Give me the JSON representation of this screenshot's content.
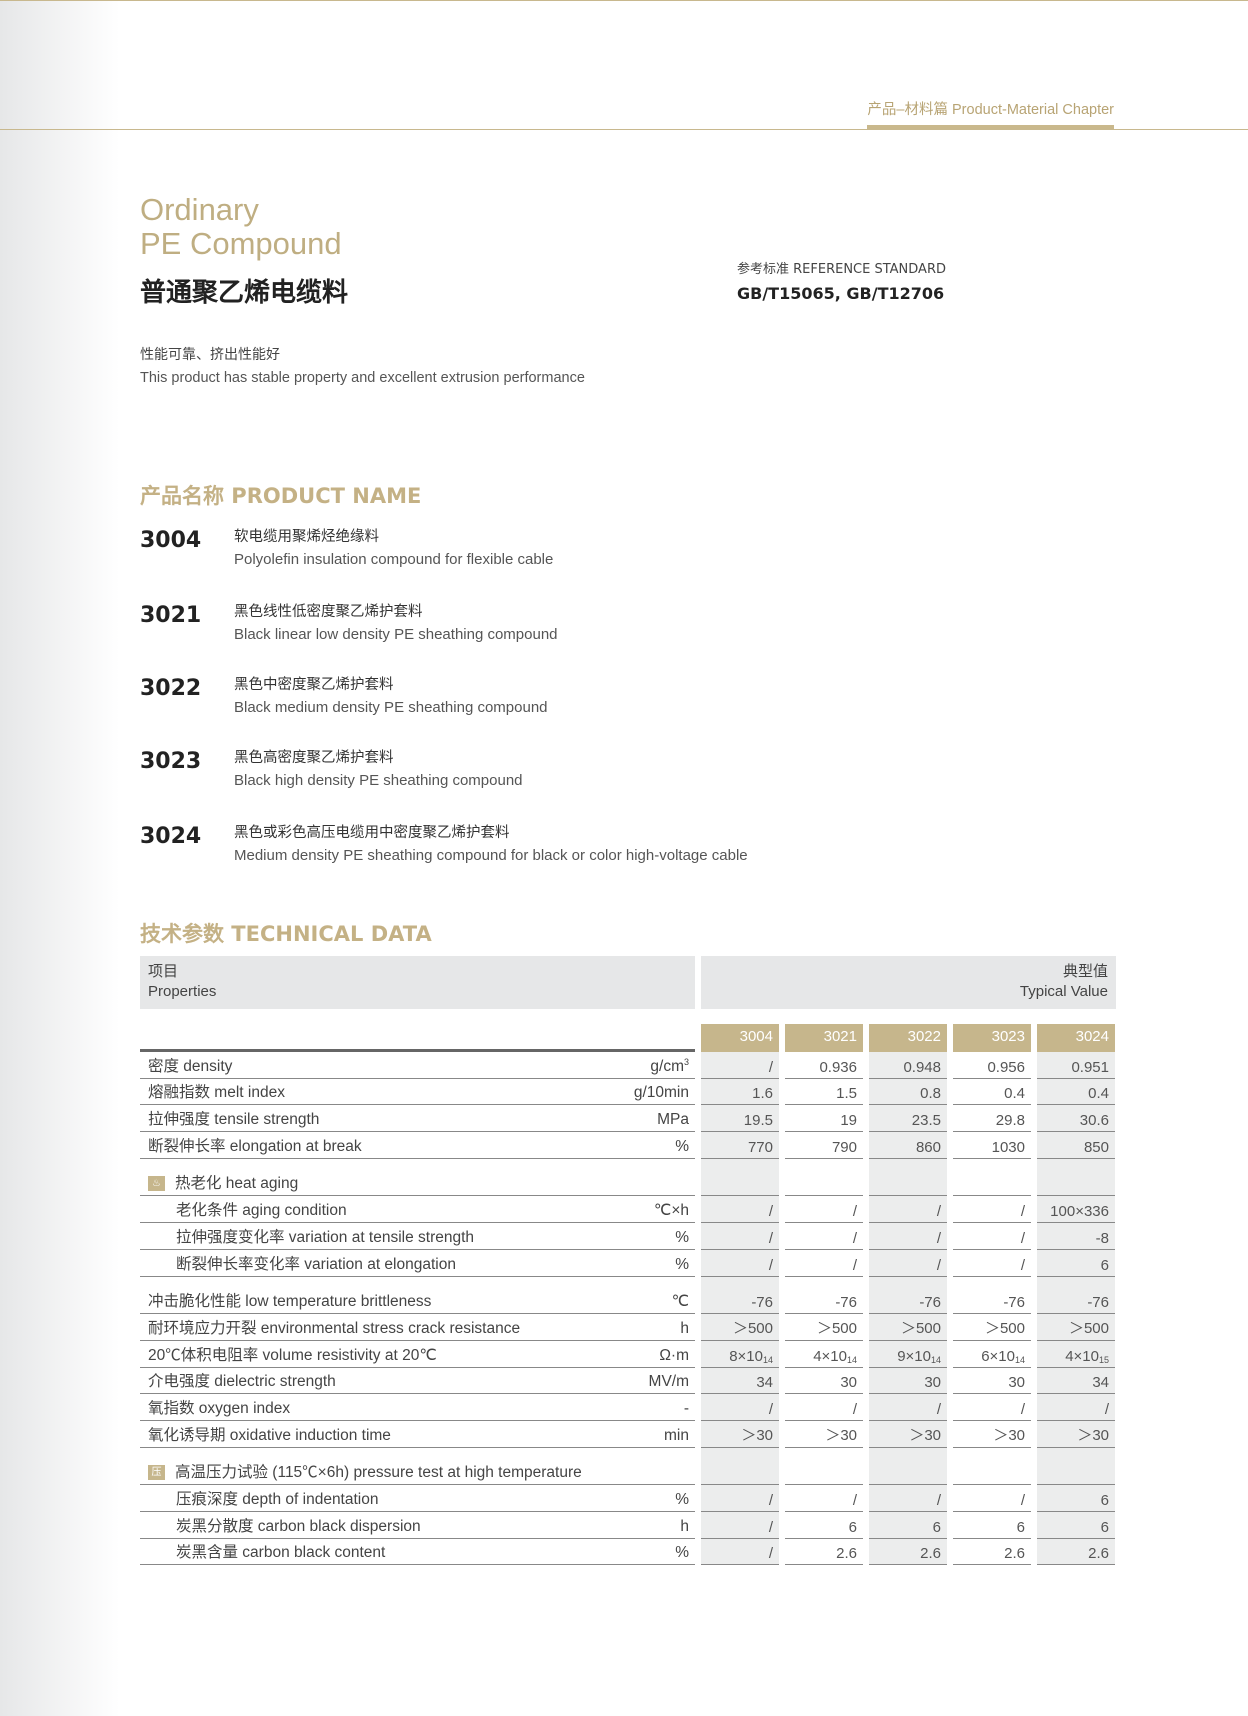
{
  "header": {
    "chapter": "产品–材料篇 Product-Material Chapter"
  },
  "title": {
    "en_line1": "Ordinary",
    "en_line2": "PE Compound",
    "cn": "普通聚乙烯电缆料"
  },
  "reference": {
    "label": "参考标准 REFERENCE STANDARD",
    "value": "GB/T15065, GB/T12706"
  },
  "description": {
    "cn": "性能可靠、挤出性能好",
    "en": "This product has stable property and excellent extrusion performance"
  },
  "product_section": {
    "title": "产品名称 PRODUCT NAME",
    "items": [
      {
        "code": "3004",
        "cn": "软电缆用聚烯烃绝缘料",
        "en": "Polyolefin insulation compound for flexible cable"
      },
      {
        "code": "3021",
        "cn": "黑色线性低密度聚乙烯护套料",
        "en": "Black linear low density PE sheathing compound"
      },
      {
        "code": "3022",
        "cn": "黑色中密度聚乙烯护套料",
        "en": "Black medium density PE sheathing compound"
      },
      {
        "code": "3023",
        "cn": "黑色高密度聚乙烯护套料",
        "en": "Black high density PE sheathing compound"
      },
      {
        "code": "3024",
        "cn": "黑色或彩色高压电缆用中密度聚乙烯护套料",
        "en": "Medium density PE sheathing compound for black or color high-voltage cable"
      }
    ]
  },
  "technical": {
    "title": "技术参数 TECHNICAL DATA",
    "props_cn": "项目",
    "props_en": "Properties",
    "typ_cn": "典型值",
    "typ_en": "Typical Value",
    "columns": [
      "3004",
      "3021",
      "3022",
      "3023",
      "3024"
    ],
    "groups": [
      {
        "rows": [
          {
            "label": "密度 density",
            "unit": "g/cm",
            "unit_sup": "3",
            "values": [
              "/",
              "0.936",
              "0.948",
              "0.956",
              "0.951"
            ]
          },
          {
            "label": "熔融指数 melt index",
            "unit": "g/10min",
            "values": [
              "1.6",
              "1.5",
              "0.8",
              "0.4",
              "0.4"
            ]
          },
          {
            "label": "拉伸强度 tensile strength",
            "unit": "MPa",
            "values": [
              "19.5",
              "19",
              "23.5",
              "29.8",
              "30.6"
            ]
          },
          {
            "label": "断裂伸长率 elongation at break",
            "unit": "%",
            "values": [
              "770",
              "790",
              "860",
              "1030",
              "850"
            ]
          }
        ]
      },
      {
        "heading": "热老化 heat aging",
        "icon": "heat-aging-icon",
        "rows": [
          {
            "label": "老化条件 aging condition",
            "unit": "℃×h",
            "values": [
              "/",
              "/",
              "/",
              "/",
              "100×336"
            ]
          },
          {
            "label": "拉伸强度变化率 variation at tensile strength",
            "unit": "%",
            "values": [
              "/",
              "/",
              "/",
              "/",
              "-8"
            ]
          },
          {
            "label": "断裂伸长率变化率 variation at elongation",
            "unit": "%",
            "values": [
              "/",
              "/",
              "/",
              "/",
              "6"
            ]
          }
        ]
      },
      {
        "rows": [
          {
            "label": "冲击脆化性能 low temperature brittleness",
            "unit": "℃",
            "values": [
              "-76",
              "-76",
              "-76",
              "-76",
              "-76"
            ]
          },
          {
            "label": "耐环境应力开裂 environmental stress crack resistance",
            "unit": "h",
            "values": [
              "＞500",
              "＞500",
              "＞500",
              "＞500",
              "＞500"
            ]
          },
          {
            "label": "20℃体积电阻率 volume resistivity at 20℃",
            "unit": "Ω·m",
            "values": [
              "8×10",
              "4×10",
              "9×10",
              "6×10",
              "4×10"
            ],
            "sups": [
              "14",
              "14",
              "14",
              "14",
              "15"
            ]
          },
          {
            "label": "介电强度 dielectric strength",
            "unit": "MV/m",
            "values": [
              "34",
              "30",
              "30",
              "30",
              "34"
            ]
          },
          {
            "label": "氧指数 oxygen index",
            "unit": "-",
            "values": [
              "/",
              "/",
              "/",
              "/",
              "/"
            ]
          },
          {
            "label": "氧化诱导期 oxidative induction time",
            "unit": "min",
            "values": [
              "＞30",
              "＞30",
              "＞30",
              "＞30",
              "＞30"
            ]
          }
        ]
      },
      {
        "heading": "高温压力试验 (115℃×6h) pressure test at high temperature",
        "icon": "pressure-test-icon",
        "rows": [
          {
            "label": "压痕深度 depth of indentation",
            "unit": "%",
            "values": [
              "/",
              "/",
              "/",
              "/",
              "6"
            ]
          },
          {
            "label": "炭黑分散度 carbon black dispersion",
            "unit": "h",
            "values": [
              "/",
              "6",
              "6",
              "6",
              "6"
            ]
          },
          {
            "label": "炭黑含量 carbon black content",
            "unit": "%",
            "values": [
              "/",
              "2.6",
              "2.6",
              "2.6",
              "2.6"
            ]
          }
        ]
      }
    ]
  }
}
